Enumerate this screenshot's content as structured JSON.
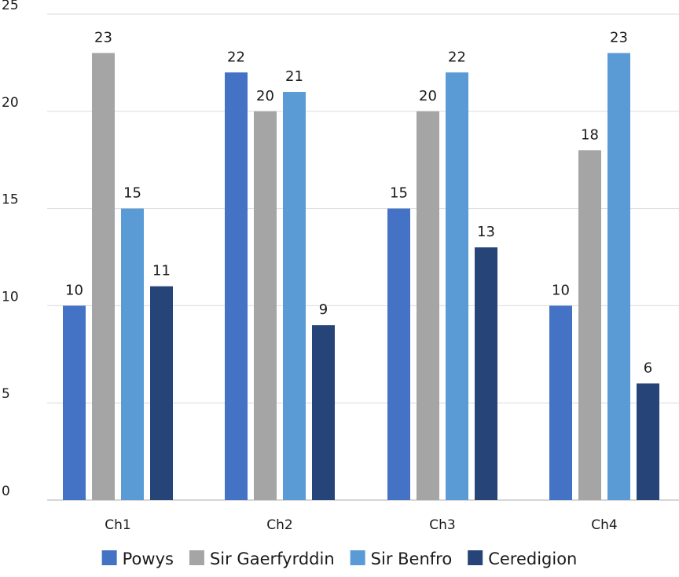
{
  "chart_data": {
    "type": "bar",
    "title": "",
    "xlabel": "",
    "ylabel": "",
    "categories": [
      "Ch1",
      "Ch2",
      "Ch3",
      "Ch4"
    ],
    "series": [
      {
        "name": "Powys",
        "color": "#4472C4",
        "values": [
          10,
          22,
          15,
          10
        ]
      },
      {
        "name": "Sir Gaerfyrddin",
        "color": "#A5A5A5",
        "values": [
          23,
          20,
          20,
          18
        ]
      },
      {
        "name": "Sir Benfro",
        "color": "#5B9BD5",
        "values": [
          15,
          21,
          22,
          23
        ]
      },
      {
        "name": "Ceredigion",
        "color": "#264478",
        "values": [
          11,
          9,
          13,
          6
        ]
      }
    ],
    "ylim": [
      0,
      25
    ],
    "yticks": [
      "0",
      "5",
      "10",
      "15",
      "20",
      "25"
    ],
    "grid": true,
    "legend_position": "bottom"
  }
}
